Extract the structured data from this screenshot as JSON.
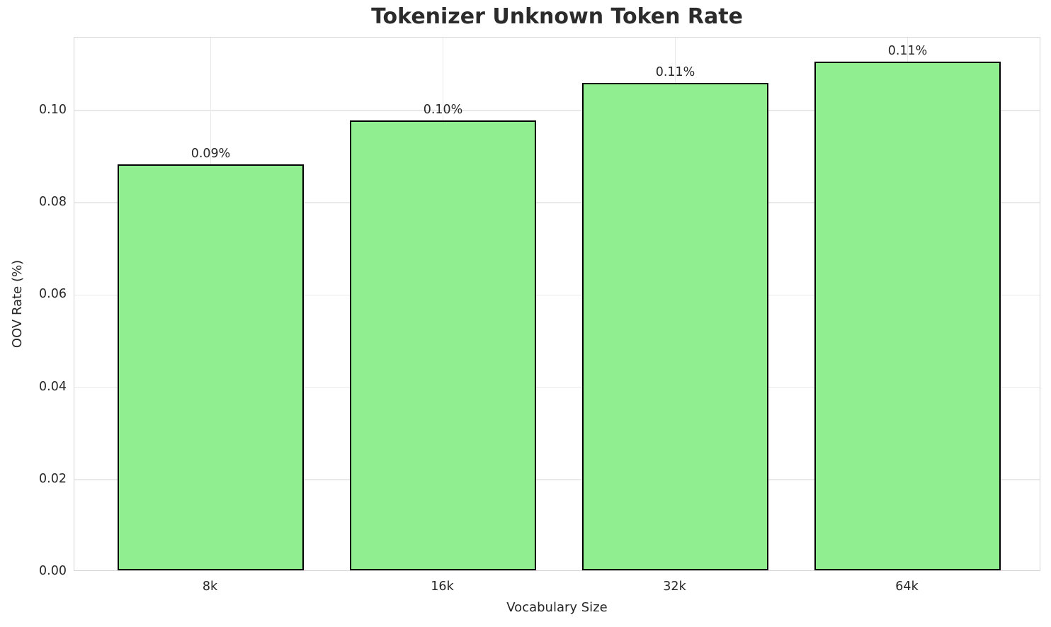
{
  "title": "Tokenizer Unknown Token Rate",
  "chart_data": {
    "type": "bar",
    "title": "Tokenizer Unknown Token Rate",
    "xlabel": "Vocabulary Size",
    "ylabel": "OOV Rate (%)",
    "categories": [
      "8k",
      "16k",
      "32k",
      "64k"
    ],
    "values": [
      0.088,
      0.0975,
      0.1056,
      0.1102
    ],
    "bar_labels": [
      "0.09%",
      "0.10%",
      "0.11%",
      "0.11%"
    ],
    "ylim": [
      0,
      0.1158
    ],
    "yticks": [
      0,
      0.02,
      0.04,
      0.06,
      0.08,
      0.1
    ],
    "ytick_labels": [
      "0.00",
      "0.02",
      "0.04",
      "0.06",
      "0.08",
      "0.10"
    ],
    "grid": true,
    "legend": "none",
    "colors": {
      "bar_fill": "#90EE90",
      "bar_edge": "#000000",
      "grid": "#e9e9e9",
      "spine": "#d4d4d4",
      "text": "#262626",
      "title_text": "#2b2b2b",
      "background": "#ffffff"
    }
  }
}
